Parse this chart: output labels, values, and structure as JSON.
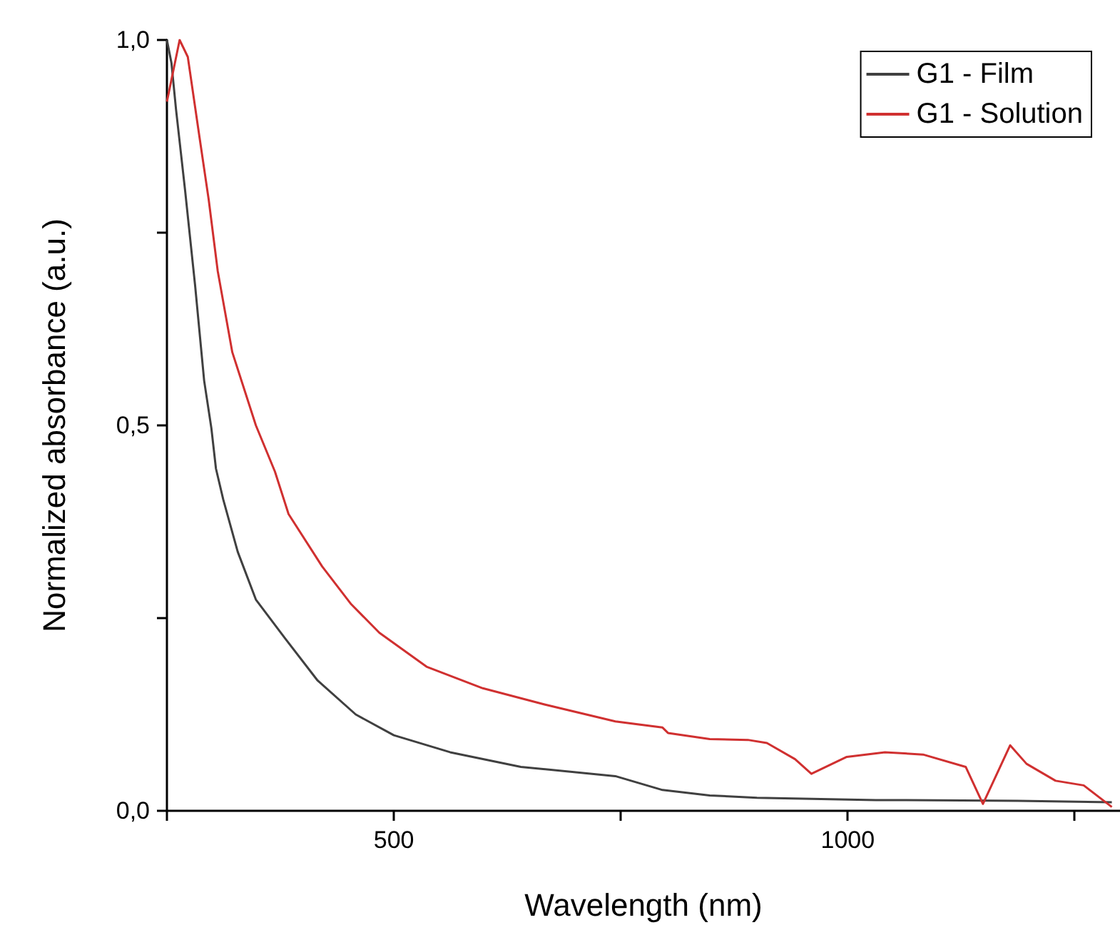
{
  "chart_data": {
    "type": "line",
    "xlabel": "Wavelength (nm)",
    "ylabel": "Normalized absorbance (a.u.)",
    "xlim": [
      250,
      1300
    ],
    "xticks": [
      {
        "value": 250,
        "label": null
      },
      500,
      {
        "value": 750,
        "label": null
      },
      1000,
      {
        "value": 1250,
        "label": null
      }
    ],
    "ylim": [
      0,
      1
    ],
    "yticks": [
      {
        "value": 0,
        "label": "0,0"
      },
      {
        "value": 0.25,
        "label": null
      },
      {
        "value": 0.5,
        "label": "0,5"
      },
      {
        "value": 0.75,
        "label": null
      },
      {
        "value": 1,
        "label": "1,0"
      }
    ],
    "legend": "top right",
    "grid": false,
    "marker": "none",
    "line_style": "solid",
    "series": [
      {
        "name": "G1 - Film",
        "color": "#404040",
        "x": [
          250,
          255,
          260,
          270,
          281,
          291,
          299,
          304,
          312,
          328,
          348,
          380,
          416,
          458,
          500,
          562,
          640,
          744,
          796,
          848,
          900,
          1031,
          1187,
          1291
        ],
        "values": [
          1.0,
          0.97,
          0.91,
          0.805,
          0.682,
          0.558,
          0.496,
          0.444,
          0.404,
          0.336,
          0.274,
          0.224,
          0.169,
          0.125,
          0.098,
          0.076,
          0.057,
          0.045,
          0.027,
          0.02,
          0.017,
          0.014,
          0.013,
          0.011
        ]
      },
      {
        "name": "G1 - Solution",
        "color": "#d03030",
        "x": [
          250,
          264,
          273,
          286,
          296,
          306,
          322,
          348,
          369,
          384,
          421,
          453,
          484,
          536,
          598,
          666,
          744,
          796,
          802,
          848,
          890,
          911,
          942,
          960,
          999,
          1041,
          1083,
          1130,
          1149,
          1179,
          1197,
          1229,
          1260,
          1291
        ],
        "values": [
          0.92,
          1.0,
          0.978,
          0.873,
          0.793,
          0.7,
          0.595,
          0.5,
          0.44,
          0.385,
          0.317,
          0.268,
          0.231,
          0.187,
          0.159,
          0.138,
          0.116,
          0.108,
          0.101,
          0.093,
          0.092,
          0.088,
          0.067,
          0.048,
          0.07,
          0.076,
          0.073,
          0.057,
          0.009,
          0.085,
          0.061,
          0.039,
          0.033,
          0.005
        ]
      }
    ]
  }
}
